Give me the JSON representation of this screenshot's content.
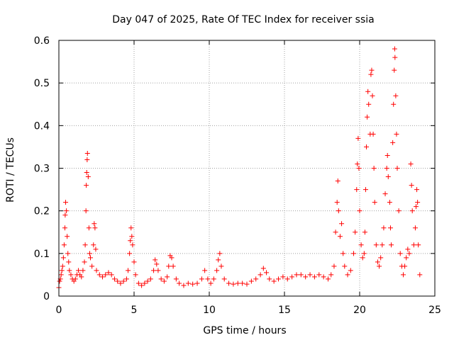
{
  "chart_data": {
    "type": "scatter",
    "title": "Day 047 of 2025, Rate Of TEC Index for receiver ssia",
    "xlabel": "GPS time / hours",
    "ylabel": "ROTI / TECUs",
    "xlim": [
      0,
      25
    ],
    "ylim": [
      0,
      0.6
    ],
    "x_ticks": [
      "0",
      "5",
      "10",
      "15",
      "20",
      "25"
    ],
    "y_ticks": [
      "0",
      "0.1",
      "0.2",
      "0.3",
      "0.4",
      "0.5",
      "0.6"
    ],
    "x_tick_values": [
      0,
      5,
      10,
      15,
      20,
      25
    ],
    "y_tick_values": [
      0,
      0.1,
      0.2,
      0.3,
      0.4,
      0.5,
      0.6
    ],
    "grid": true,
    "marker": "+",
    "color": "#ff0000",
    "series": [
      {
        "points": [
          [
            0.0,
            0.02
          ],
          [
            0.05,
            0.035
          ],
          [
            0.1,
            0.04
          ],
          [
            0.15,
            0.05
          ],
          [
            0.2,
            0.06
          ],
          [
            0.25,
            0.07
          ],
          [
            0.3,
            0.09
          ],
          [
            0.35,
            0.12
          ],
          [
            0.4,
            0.16
          ],
          [
            0.42,
            0.19
          ],
          [
            0.45,
            0.22
          ],
          [
            0.5,
            0.2
          ],
          [
            0.55,
            0.14
          ],
          [
            0.6,
            0.1
          ],
          [
            0.65,
            0.08
          ],
          [
            0.7,
            0.06
          ],
          [
            0.8,
            0.05
          ],
          [
            0.9,
            0.04
          ],
          [
            1.0,
            0.035
          ],
          [
            1.1,
            0.04
          ],
          [
            1.2,
            0.05
          ],
          [
            1.3,
            0.06
          ],
          [
            1.4,
            0.05
          ],
          [
            1.5,
            0.045
          ],
          [
            1.6,
            0.06
          ],
          [
            1.7,
            0.08
          ],
          [
            1.75,
            0.12
          ],
          [
            1.8,
            0.2
          ],
          [
            1.82,
            0.26
          ],
          [
            1.85,
            0.29
          ],
          [
            1.88,
            0.32
          ],
          [
            1.9,
            0.335
          ],
          [
            1.95,
            0.28
          ],
          [
            2.0,
            0.16
          ],
          [
            2.05,
            0.1
          ],
          [
            2.1,
            0.09
          ],
          [
            2.2,
            0.07
          ],
          [
            2.3,
            0.12
          ],
          [
            2.35,
            0.17
          ],
          [
            2.4,
            0.16
          ],
          [
            2.45,
            0.11
          ],
          [
            2.5,
            0.06
          ],
          [
            2.7,
            0.05
          ],
          [
            2.9,
            0.045
          ],
          [
            3.1,
            0.05
          ],
          [
            3.3,
            0.055
          ],
          [
            3.5,
            0.05
          ],
          [
            3.7,
            0.04
          ],
          [
            3.9,
            0.035
          ],
          [
            4.1,
            0.03
          ],
          [
            4.3,
            0.035
          ],
          [
            4.5,
            0.04
          ],
          [
            4.6,
            0.06
          ],
          [
            4.7,
            0.1
          ],
          [
            4.75,
            0.13
          ],
          [
            4.8,
            0.16
          ],
          [
            4.85,
            0.14
          ],
          [
            4.9,
            0.12
          ],
          [
            5.0,
            0.08
          ],
          [
            5.1,
            0.05
          ],
          [
            5.3,
            0.03
          ],
          [
            5.5,
            0.025
          ],
          [
            5.7,
            0.03
          ],
          [
            5.9,
            0.035
          ],
          [
            6.1,
            0.04
          ],
          [
            6.3,
            0.06
          ],
          [
            6.4,
            0.085
          ],
          [
            6.5,
            0.075
          ],
          [
            6.6,
            0.06
          ],
          [
            6.8,
            0.04
          ],
          [
            7.0,
            0.035
          ],
          [
            7.2,
            0.045
          ],
          [
            7.3,
            0.07
          ],
          [
            7.4,
            0.095
          ],
          [
            7.5,
            0.09
          ],
          [
            7.6,
            0.07
          ],
          [
            7.8,
            0.04
          ],
          [
            8.0,
            0.03
          ],
          [
            8.3,
            0.025
          ],
          [
            8.6,
            0.03
          ],
          [
            8.9,
            0.028
          ],
          [
            9.2,
            0.03
          ],
          [
            9.5,
            0.04
          ],
          [
            9.7,
            0.06
          ],
          [
            9.9,
            0.04
          ],
          [
            10.1,
            0.03
          ],
          [
            10.3,
            0.04
          ],
          [
            10.5,
            0.06
          ],
          [
            10.6,
            0.085
          ],
          [
            10.7,
            0.1
          ],
          [
            10.8,
            0.07
          ],
          [
            11.0,
            0.04
          ],
          [
            11.3,
            0.03
          ],
          [
            11.6,
            0.028
          ],
          [
            11.9,
            0.03
          ],
          [
            12.2,
            0.03
          ],
          [
            12.5,
            0.028
          ],
          [
            12.8,
            0.035
          ],
          [
            13.1,
            0.04
          ],
          [
            13.4,
            0.05
          ],
          [
            13.6,
            0.065
          ],
          [
            13.8,
            0.055
          ],
          [
            14.0,
            0.04
          ],
          [
            14.3,
            0.035
          ],
          [
            14.6,
            0.04
          ],
          [
            14.9,
            0.045
          ],
          [
            15.2,
            0.04
          ],
          [
            15.5,
            0.045
          ],
          [
            15.8,
            0.05
          ],
          [
            16.1,
            0.05
          ],
          [
            16.4,
            0.045
          ],
          [
            16.7,
            0.05
          ],
          [
            17.0,
            0.045
          ],
          [
            17.3,
            0.05
          ],
          [
            17.6,
            0.045
          ],
          [
            17.9,
            0.04
          ],
          [
            18.1,
            0.05
          ],
          [
            18.3,
            0.07
          ],
          [
            18.4,
            0.15
          ],
          [
            18.5,
            0.22
          ],
          [
            18.55,
            0.27
          ],
          [
            18.6,
            0.2
          ],
          [
            18.7,
            0.14
          ],
          [
            18.8,
            0.17
          ],
          [
            18.9,
            0.1
          ],
          [
            19.0,
            0.07
          ],
          [
            19.2,
            0.05
          ],
          [
            19.4,
            0.06
          ],
          [
            19.6,
            0.1
          ],
          [
            19.7,
            0.15
          ],
          [
            19.8,
            0.25
          ],
          [
            19.85,
            0.31
          ],
          [
            19.9,
            0.37
          ],
          [
            19.95,
            0.3
          ],
          [
            20.0,
            0.2
          ],
          [
            20.1,
            0.12
          ],
          [
            20.2,
            0.09
          ],
          [
            20.3,
            0.1
          ],
          [
            20.35,
            0.15
          ],
          [
            20.4,
            0.25
          ],
          [
            20.45,
            0.35
          ],
          [
            20.5,
            0.42
          ],
          [
            20.55,
            0.48
          ],
          [
            20.6,
            0.45
          ],
          [
            20.7,
            0.38
          ],
          [
            20.75,
            0.52
          ],
          [
            20.8,
            0.53
          ],
          [
            20.85,
            0.47
          ],
          [
            20.9,
            0.38
          ],
          [
            20.95,
            0.3
          ],
          [
            21.0,
            0.22
          ],
          [
            21.1,
            0.12
          ],
          [
            21.2,
            0.08
          ],
          [
            21.3,
            0.07
          ],
          [
            21.4,
            0.09
          ],
          [
            21.5,
            0.12
          ],
          [
            21.6,
            0.16
          ],
          [
            21.7,
            0.24
          ],
          [
            21.8,
            0.3
          ],
          [
            21.85,
            0.33
          ],
          [
            21.9,
            0.28
          ],
          [
            22.0,
            0.22
          ],
          [
            22.05,
            0.16
          ],
          [
            22.1,
            0.12
          ],
          [
            22.2,
            0.36
          ],
          [
            22.25,
            0.45
          ],
          [
            22.3,
            0.53
          ],
          [
            22.33,
            0.58
          ],
          [
            22.35,
            0.56
          ],
          [
            22.4,
            0.47
          ],
          [
            22.45,
            0.38
          ],
          [
            22.5,
            0.3
          ],
          [
            22.6,
            0.2
          ],
          [
            22.7,
            0.1
          ],
          [
            22.8,
            0.07
          ],
          [
            22.9,
            0.05
          ],
          [
            23.0,
            0.07
          ],
          [
            23.1,
            0.09
          ],
          [
            23.2,
            0.11
          ],
          [
            23.3,
            0.1
          ],
          [
            23.4,
            0.31
          ],
          [
            23.45,
            0.26
          ],
          [
            23.5,
            0.2
          ],
          [
            23.6,
            0.12
          ],
          [
            23.7,
            0.16
          ],
          [
            23.75,
            0.21
          ],
          [
            23.8,
            0.25
          ],
          [
            23.85,
            0.22
          ],
          [
            23.9,
            0.12
          ],
          [
            24.0,
            0.05
          ]
        ]
      }
    ]
  }
}
